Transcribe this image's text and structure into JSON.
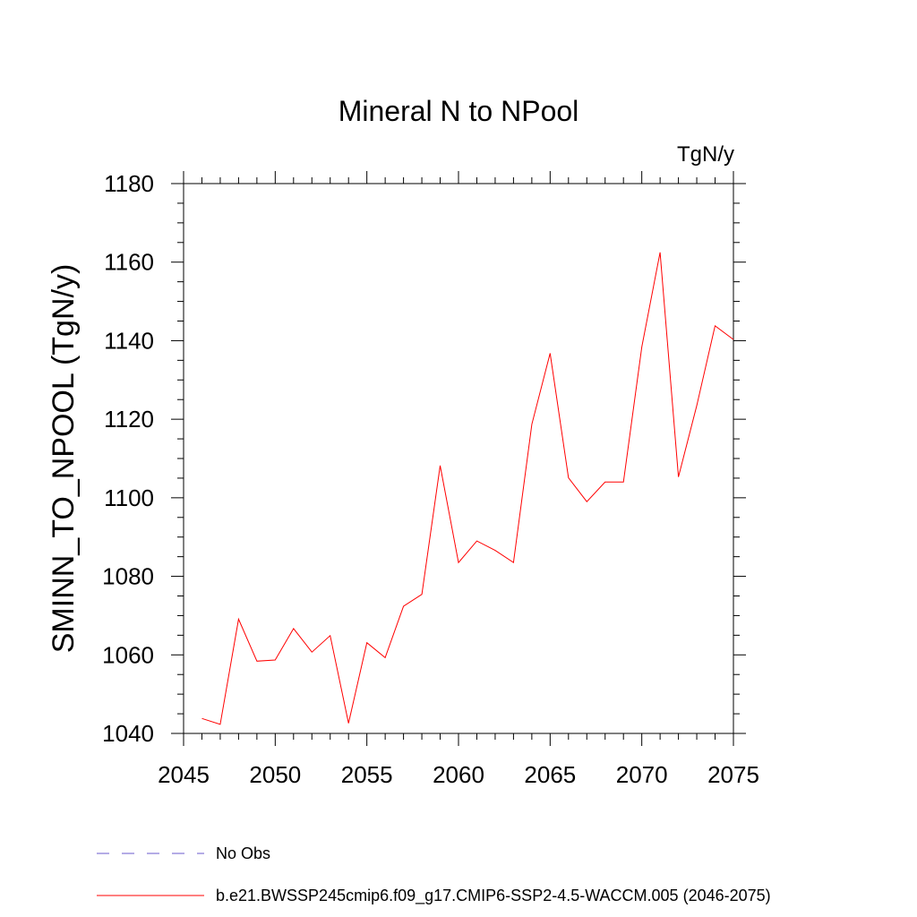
{
  "chart_data": {
    "type": "line",
    "title": "Mineral N to NPool",
    "units_label": "TgN/y",
    "xlabel": "",
    "ylabel": "SMINN_TO_NPOOL  (TgN/y)",
    "xlim": [
      2045,
      2075
    ],
    "ylim": [
      1040,
      1180
    ],
    "x_ticks": [
      2045,
      2050,
      2055,
      2060,
      2065,
      2070,
      2075
    ],
    "y_ticks": [
      1040,
      1060,
      1080,
      1100,
      1120,
      1140,
      1160,
      1180
    ],
    "x_tick_labels": [
      "2045",
      "2050",
      "2055",
      "2060",
      "2065",
      "2070",
      "2075"
    ],
    "y_tick_labels": [
      "1040",
      "1060",
      "1080",
      "1100",
      "1120",
      "1140",
      "1160",
      "1180"
    ],
    "grid": false,
    "legend_position": "bottom",
    "series": [
      {
        "name": "b.e21.BWSSP245cmip6.f09_g17.CMIP6-SSP2-4.5-WACCM.005 (2046-2075)",
        "color": "#ff0000",
        "dash": "solid",
        "x": [
          2046,
          2047,
          2048,
          2049,
          2050,
          2051,
          2052,
          2053,
          2054,
          2055,
          2056,
          2057,
          2058,
          2059,
          2060,
          2061,
          2062,
          2063,
          2064,
          2065,
          2066,
          2067,
          2068,
          2069,
          2070,
          2071,
          2072,
          2073,
          2074,
          2075
        ],
        "y": [
          1043.8,
          1042.3,
          1069.1,
          1058.4,
          1058.7,
          1066.7,
          1060.7,
          1064.9,
          1042.6,
          1063.1,
          1059.3,
          1072.4,
          1075.4,
          1108.2,
          1083.5,
          1089.0,
          1086.6,
          1083.5,
          1118.7,
          1136.8,
          1105.1,
          1099.0,
          1104.0,
          1104.0,
          1138.4,
          1162.5,
          1105.3,
          1123.5,
          1143.8,
          1140.3
        ]
      }
    ],
    "legend": [
      {
        "label": "No Obs",
        "color": "#6a5acd",
        "dash": "dashed"
      },
      {
        "label": "b.e21.BWSSP245cmip6.f09_g17.CMIP6-SSP2-4.5-WACCM.005 (2046-2075)",
        "color": "#ff0000",
        "dash": "solid"
      }
    ]
  }
}
